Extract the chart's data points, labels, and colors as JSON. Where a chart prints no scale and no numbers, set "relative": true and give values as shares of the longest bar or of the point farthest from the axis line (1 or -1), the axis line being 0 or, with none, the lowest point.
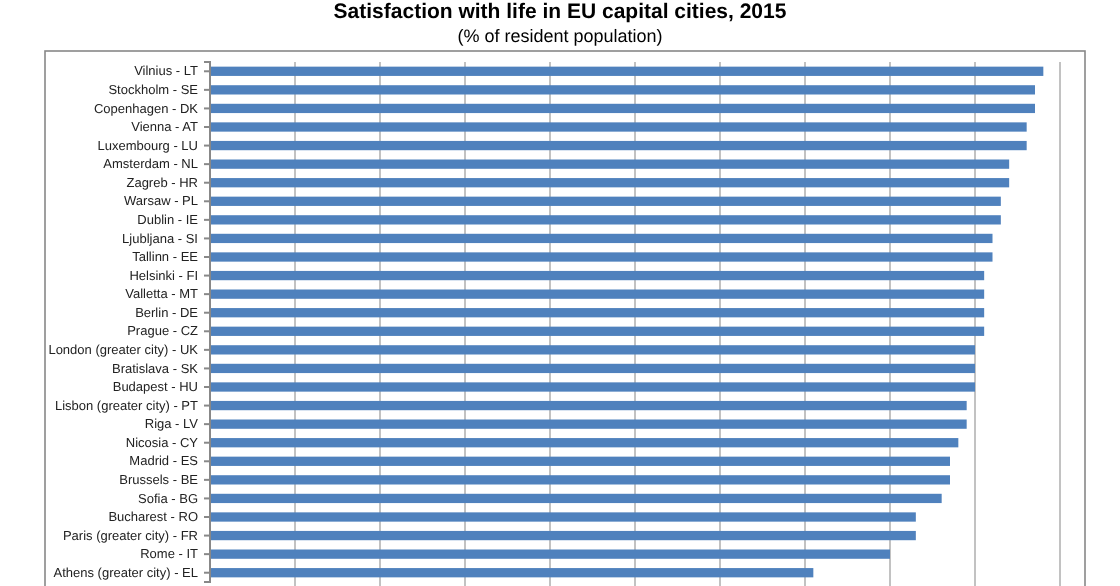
{
  "chart_data": {
    "type": "bar",
    "orientation": "horizontal",
    "relative": true,
    "grid": "x",
    "title": "Satisfaction with life in EU capital cities, 2015",
    "subtitle": "(% of resident population)",
    "categories": [
      "Vilnius - LT",
      "Stockholm - SE",
      "Copenhagen - DK",
      "Vienna - AT",
      "Luxembourg - LU",
      "Amsterdam - NL",
      "Zagreb - HR",
      "Warsaw - PL",
      "Dublin - IE",
      "Ljubljana - SI",
      "Tallinn - EE",
      "Helsinki - FI",
      "Valletta - MT",
      "Berlin - DE",
      "Prague - CZ",
      "London (greater city) - UK",
      "Bratislava - SK",
      "Budapest - HU",
      "Lisbon (greater city) - PT",
      "Riga - LV",
      "Nicosia - CY",
      "Madrid - ES",
      "Brussels - BE",
      "Sofia - BG",
      "Bucharest - RO",
      "Paris (greater city) - FR",
      "Rome - IT",
      "Athens (greater city) - EL"
    ],
    "values": [
      1,
      0.99,
      0.99,
      0.98,
      0.98,
      0.959,
      0.959,
      0.949,
      0.949,
      0.939,
      0.939,
      0.929,
      0.929,
      0.929,
      0.929,
      0.918,
      0.918,
      0.918,
      0.908,
      0.908,
      0.898,
      0.888,
      0.888,
      0.878,
      0.847,
      0.847,
      0.816,
      0.724
    ],
    "color": "#4f81bd"
  }
}
